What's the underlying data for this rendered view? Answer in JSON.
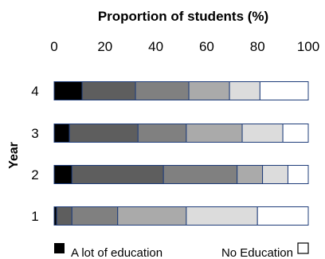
{
  "chart_data": {
    "type": "bar",
    "orientation": "horizontal",
    "stacked": true,
    "title": "Proportion of students (%)",
    "ylabel": "Year",
    "xlim": [
      0,
      100
    ],
    "x_ticks": [
      0,
      20,
      40,
      60,
      80,
      100
    ],
    "categories": [
      "4",
      "3",
      "2",
      "1"
    ],
    "axis_position": "top",
    "series": [
      {
        "values": [
          11,
          6,
          7,
          1
        ],
        "color": "#000000"
      },
      {
        "values": [
          21,
          27,
          36,
          6
        ],
        "color": "#5e5e5e"
      },
      {
        "values": [
          21,
          19,
          29,
          18
        ],
        "color": "#808080"
      },
      {
        "values": [
          16,
          22,
          10,
          27
        ],
        "color": "#aaaaaa"
      },
      {
        "values": [
          12,
          16,
          10,
          28
        ],
        "color": "#dcdcdc"
      },
      {
        "values": [
          19,
          10,
          8,
          20
        ],
        "color": "#ffffff"
      }
    ],
    "bar_border_color": "#1f3d7a",
    "legend": {
      "placement": "bottom",
      "low_label": "A lot of education",
      "high_label": "No Education",
      "low_color": "#000000",
      "high_color": "#ffffff"
    }
  }
}
